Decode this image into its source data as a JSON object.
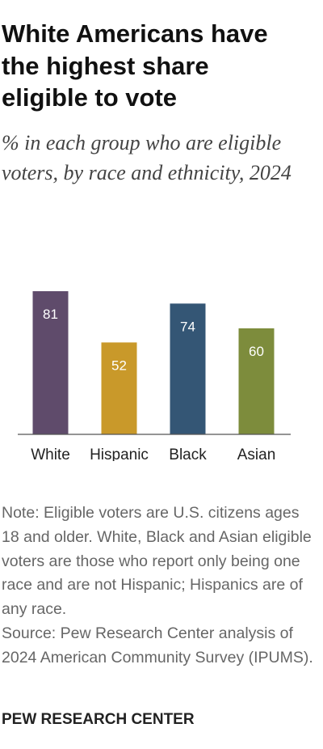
{
  "chart_data": {
    "type": "bar",
    "title": "White Americans have the highest share eligible to vote",
    "subtitle": "% in each group who are eligible voters, by race and ethnicity, 2024",
    "categories": [
      "White",
      "Hispanic",
      "Black",
      "Asian"
    ],
    "values": [
      81,
      52,
      74,
      60
    ],
    "colors": [
      "#5f4b6b",
      "#c9992a",
      "#345675",
      "#7d8c3c"
    ],
    "note": "Note: Eligible voters are U.S. citizens ages 18 and older. White, Black and Asian eligible voters are those who report only being one race and are not Hispanic; Hispanics are of any race.",
    "source": "Source: Pew Research Center analysis of 2024 American Community Survey (IPUMS).",
    "footer": "PEW RESEARCH CENTER"
  }
}
